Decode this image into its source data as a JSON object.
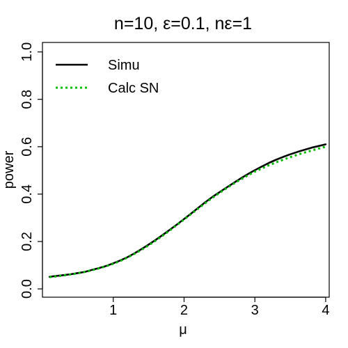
{
  "chart_data": {
    "type": "line",
    "title": "n=10, ε=0.1, nε=1",
    "xlabel": "μ",
    "ylabel": "power",
    "xlim": [
      0,
      4.05
    ],
    "ylim": [
      -0.035,
      1.04
    ],
    "xticks": [
      {
        "value": 1,
        "label": "1"
      },
      {
        "value": 2,
        "label": "2"
      },
      {
        "value": 3,
        "label": "3"
      },
      {
        "value": 4,
        "label": "4"
      }
    ],
    "yticks": [
      {
        "value": 0.0,
        "label": "0.0"
      },
      {
        "value": 0.2,
        "label": "0.2"
      },
      {
        "value": 0.4,
        "label": "0.4"
      },
      {
        "value": 0.6,
        "label": "0.6"
      },
      {
        "value": 0.8,
        "label": "0.8"
      },
      {
        "value": 1.0,
        "label": "1.0"
      }
    ],
    "grid": false,
    "legend_position": "top-left",
    "x": [
      0.1,
      0.2,
      0.3,
      0.4,
      0.5,
      0.6,
      0.7,
      0.8,
      0.9,
      1.0,
      1.1,
      1.2,
      1.3,
      1.4,
      1.5,
      1.6,
      1.7,
      1.8,
      1.9,
      2.0,
      2.1,
      2.2,
      2.3,
      2.4,
      2.5,
      2.6,
      2.7,
      2.8,
      2.9,
      3.0,
      3.1,
      3.2,
      3.3,
      3.4,
      3.5,
      3.6,
      3.7,
      3.8,
      3.9,
      4.0
    ],
    "series": [
      {
        "name": "Simu",
        "color": "#000000",
        "style": "solid",
        "values": [
          0.051,
          0.055,
          0.058,
          0.062,
          0.067,
          0.072,
          0.08,
          0.088,
          0.097,
          0.108,
          0.12,
          0.134,
          0.15,
          0.168,
          0.187,
          0.207,
          0.228,
          0.25,
          0.272,
          0.295,
          0.318,
          0.342,
          0.366,
          0.388,
          0.408,
          0.428,
          0.447,
          0.466,
          0.484,
          0.501,
          0.517,
          0.532,
          0.545,
          0.557,
          0.568,
          0.578,
          0.587,
          0.596,
          0.603,
          0.61
        ]
      },
      {
        "name": "Calc SN",
        "color": "#00bb00",
        "style": "dotted",
        "values": [
          0.05,
          0.053,
          0.057,
          0.061,
          0.066,
          0.072,
          0.079,
          0.087,
          0.096,
          0.106,
          0.118,
          0.132,
          0.148,
          0.165,
          0.184,
          0.204,
          0.225,
          0.247,
          0.27,
          0.293,
          0.316,
          0.339,
          0.362,
          0.384,
          0.405,
          0.425,
          0.444,
          0.462,
          0.479,
          0.495,
          0.509,
          0.522,
          0.534,
          0.545,
          0.556,
          0.566,
          0.575,
          0.584,
          0.592,
          0.6
        ]
      }
    ]
  }
}
